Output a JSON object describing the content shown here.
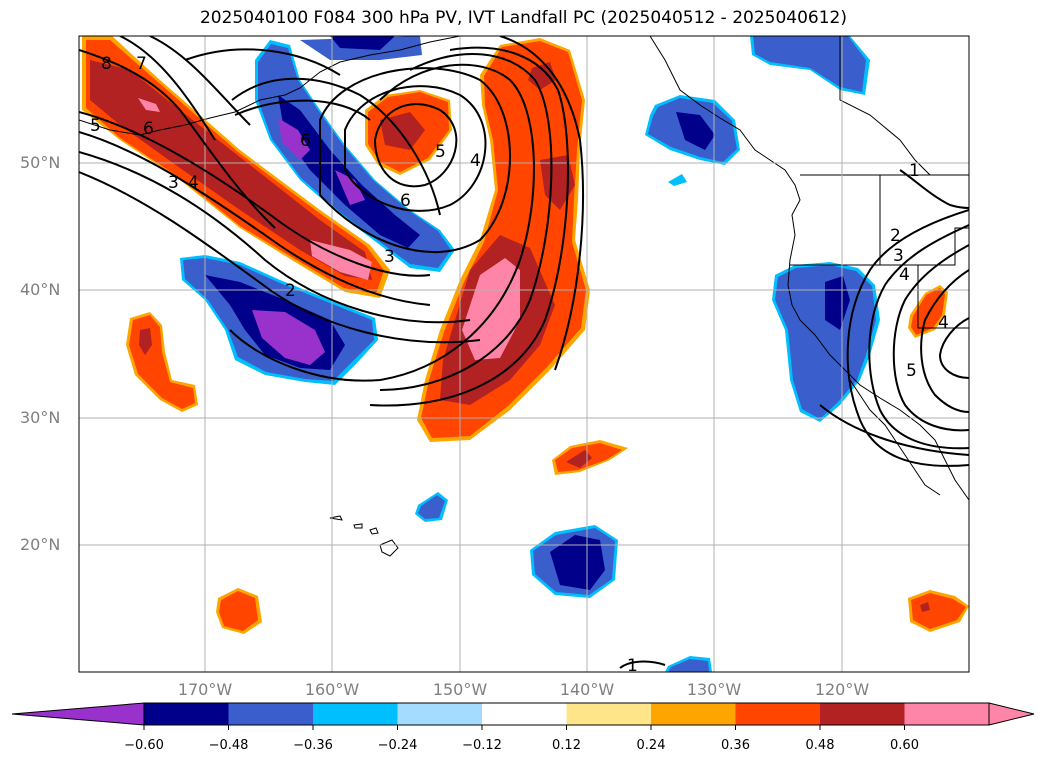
{
  "title": "2025040100 F084 300 hPa PV, IVT Landfall PC (2025040512 - 2025040612)",
  "map": {
    "lon_range": [
      -180,
      -110
    ],
    "lat_range": [
      10,
      60
    ],
    "lat_labels": [
      "50°N",
      "40°N",
      "30°N",
      "20°N"
    ],
    "lon_labels": [
      "170°W",
      "160°W",
      "150°W",
      "140°W",
      "130°W",
      "120°W"
    ],
    "contour_labels": [
      "8",
      "7",
      "5",
      "6",
      "3",
      "4",
      "6",
      "5",
      "4",
      "6",
      "3",
      "2",
      "2",
      "3",
      "4",
      "4",
      "5",
      "1",
      "1"
    ]
  },
  "colorbar": {
    "ticks": [
      "−0.60",
      "−0.48",
      "−0.36",
      "−0.24",
      "−0.12",
      "0.12",
      "0.24",
      "0.36",
      "0.48",
      "0.60"
    ],
    "colors": [
      "#9932cc",
      "#00008b",
      "#3a5fcd",
      "#00bfff",
      "#a4dcff",
      "#ffffff",
      "#ffe58a",
      "#ffa500",
      "#ff4500",
      "#b22222",
      "#ff85a8",
      "#ff85a8"
    ]
  }
}
